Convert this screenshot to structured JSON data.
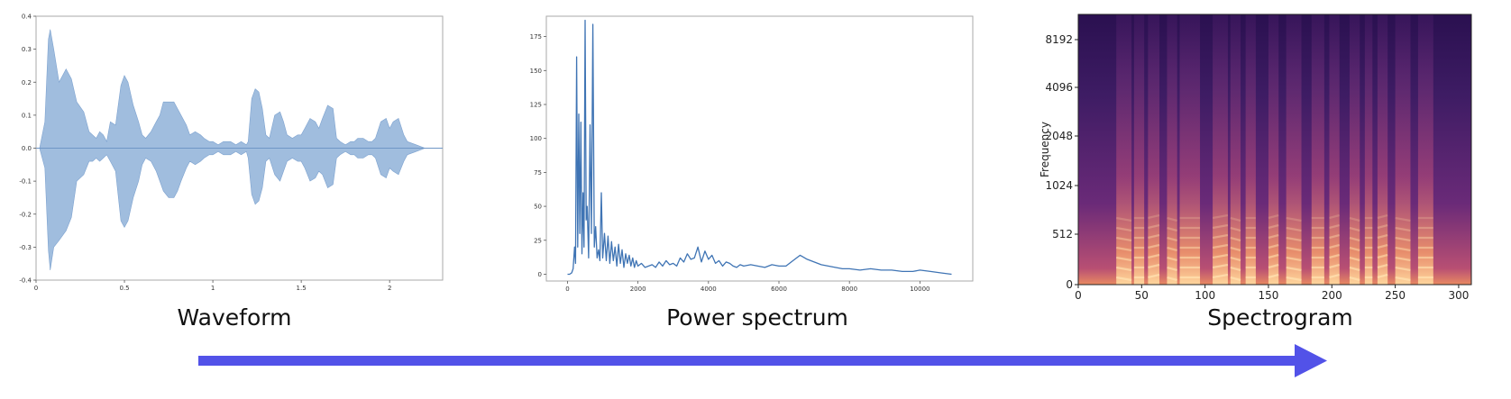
{
  "captions": {
    "waveform": "Waveform",
    "power": "Power spectrum",
    "spectrogram": "Spectrogram"
  },
  "colors": {
    "waveform": "#8fb1d8",
    "power": "#3f74b4",
    "arrow": "#5252e8"
  },
  "chart_data": [
    {
      "type": "area",
      "xlim": [
        0,
        2.3
      ],
      "ylim": [
        -0.4,
        0.4
      ],
      "x_ticks": [
        "0",
        "0.5",
        "1",
        "1.5",
        "2"
      ],
      "x_tick_values": [
        0,
        0.5,
        1,
        1.5,
        2
      ],
      "y_ticks": [
        "0.4",
        "0.3",
        "0.2",
        "0.1",
        "0.0",
        "-0.1",
        "-0.2",
        "-0.3",
        "-0.4"
      ],
      "y_tick_values": [
        0.4,
        0.3,
        0.2,
        0.1,
        0.0,
        -0.1,
        -0.2,
        -0.3,
        -0.4
      ],
      "envelope": {
        "x": [
          0,
          0.02,
          0.05,
          0.07,
          0.08,
          0.1,
          0.13,
          0.17,
          0.2,
          0.23,
          0.27,
          0.3,
          0.32,
          0.34,
          0.36,
          0.38,
          0.4,
          0.42,
          0.45,
          0.48,
          0.5,
          0.52,
          0.55,
          0.58,
          0.6,
          0.62,
          0.65,
          0.68,
          0.7,
          0.72,
          0.75,
          0.78,
          0.8,
          0.82,
          0.85,
          0.87,
          0.9,
          0.93,
          0.95,
          0.98,
          1.0,
          1.03,
          1.06,
          1.1,
          1.13,
          1.16,
          1.19,
          1.2,
          1.22,
          1.24,
          1.26,
          1.28,
          1.3,
          1.32,
          1.35,
          1.38,
          1.4,
          1.42,
          1.45,
          1.48,
          1.5,
          1.52,
          1.55,
          1.58,
          1.6,
          1.62,
          1.65,
          1.68,
          1.7,
          1.72,
          1.75,
          1.78,
          1.8,
          1.82,
          1.85,
          1.88,
          1.9,
          1.92,
          1.95,
          1.98,
          2.0,
          2.02,
          2.05,
          2.08,
          2.1,
          2.15,
          2.2,
          2.3
        ],
        "top": [
          0.0,
          0.0,
          0.08,
          0.33,
          0.36,
          0.3,
          0.2,
          0.24,
          0.21,
          0.14,
          0.11,
          0.05,
          0.04,
          0.03,
          0.05,
          0.04,
          0.02,
          0.08,
          0.07,
          0.19,
          0.22,
          0.2,
          0.13,
          0.08,
          0.04,
          0.03,
          0.05,
          0.08,
          0.1,
          0.14,
          0.14,
          0.14,
          0.12,
          0.1,
          0.07,
          0.04,
          0.05,
          0.04,
          0.03,
          0.02,
          0.02,
          0.01,
          0.02,
          0.02,
          0.01,
          0.02,
          0.01,
          0.02,
          0.15,
          0.18,
          0.17,
          0.12,
          0.04,
          0.03,
          0.1,
          0.11,
          0.08,
          0.04,
          0.03,
          0.04,
          0.04,
          0.06,
          0.09,
          0.08,
          0.06,
          0.09,
          0.13,
          0.12,
          0.03,
          0.02,
          0.01,
          0.02,
          0.02,
          0.03,
          0.03,
          0.02,
          0.02,
          0.03,
          0.08,
          0.09,
          0.06,
          0.08,
          0.09,
          0.04,
          0.02,
          0.01,
          0.0,
          0.0
        ],
        "bottom": [
          0.0,
          0.0,
          -0.06,
          -0.31,
          -0.37,
          -0.3,
          -0.28,
          -0.25,
          -0.21,
          -0.1,
          -0.08,
          -0.04,
          -0.04,
          -0.03,
          -0.04,
          -0.03,
          -0.02,
          -0.04,
          -0.07,
          -0.22,
          -0.24,
          -0.22,
          -0.15,
          -0.1,
          -0.05,
          -0.03,
          -0.04,
          -0.07,
          -0.1,
          -0.13,
          -0.15,
          -0.15,
          -0.13,
          -0.1,
          -0.06,
          -0.04,
          -0.05,
          -0.04,
          -0.03,
          -0.02,
          -0.02,
          -0.01,
          -0.02,
          -0.02,
          -0.01,
          -0.02,
          -0.01,
          -0.03,
          -0.14,
          -0.17,
          -0.16,
          -0.12,
          -0.04,
          -0.03,
          -0.08,
          -0.1,
          -0.07,
          -0.04,
          -0.03,
          -0.04,
          -0.04,
          -0.06,
          -0.1,
          -0.09,
          -0.07,
          -0.08,
          -0.12,
          -0.11,
          -0.03,
          -0.02,
          -0.01,
          -0.02,
          -0.02,
          -0.03,
          -0.03,
          -0.02,
          -0.02,
          -0.03,
          -0.08,
          -0.09,
          -0.06,
          -0.07,
          -0.08,
          -0.04,
          -0.02,
          -0.01,
          0.0,
          0.0
        ]
      }
    },
    {
      "type": "line",
      "xlim": [
        -600,
        11500
      ],
      "ylim": [
        -5,
        190
      ],
      "x_ticks": [
        "0",
        "2000",
        "4000",
        "6000",
        "8000",
        "10000"
      ],
      "x_tick_values": [
        0,
        2000,
        4000,
        6000,
        8000,
        10000
      ],
      "y_ticks": [
        "175",
        "150",
        "125",
        "100",
        "75",
        "50",
        "25",
        "0"
      ],
      "y_tick_values": [
        175,
        150,
        125,
        100,
        75,
        50,
        25,
        0
      ],
      "x": [
        0,
        60,
        120,
        160,
        200,
        230,
        260,
        290,
        320,
        350,
        380,
        410,
        440,
        470,
        500,
        530,
        560,
        600,
        640,
        680,
        720,
        760,
        800,
        840,
        880,
        920,
        960,
        1000,
        1050,
        1100,
        1150,
        1200,
        1250,
        1300,
        1350,
        1400,
        1450,
        1500,
        1550,
        1600,
        1650,
        1700,
        1750,
        1800,
        1850,
        1900,
        1950,
        2000,
        2100,
        2200,
        2300,
        2400,
        2500,
        2600,
        2700,
        2800,
        2900,
        3000,
        3100,
        3200,
        3300,
        3400,
        3500,
        3600,
        3700,
        3800,
        3900,
        4000,
        4100,
        4200,
        4300,
        4400,
        4500,
        4600,
        4700,
        4800,
        4900,
        5000,
        5200,
        5400,
        5600,
        5800,
        6000,
        6200,
        6400,
        6600,
        6800,
        7000,
        7200,
        7400,
        7600,
        7800,
        8000,
        8300,
        8600,
        8900,
        9200,
        9500,
        9800,
        10000,
        10300,
        10600,
        10900
      ],
      "y": [
        0,
        0,
        1,
        4,
        20,
        8,
        160,
        20,
        118,
        30,
        112,
        15,
        60,
        20,
        187,
        40,
        50,
        12,
        110,
        30,
        184,
        20,
        35,
        12,
        18,
        10,
        60,
        12,
        30,
        10,
        28,
        8,
        24,
        10,
        20,
        6,
        22,
        8,
        18,
        5,
        15,
        8,
        14,
        6,
        12,
        5,
        10,
        6,
        8,
        5,
        6,
        7,
        5,
        9,
        6,
        10,
        7,
        8,
        6,
        12,
        9,
        15,
        11,
        12,
        20,
        9,
        17,
        11,
        14,
        8,
        10,
        6,
        9,
        8,
        6,
        5,
        7,
        6,
        7,
        6,
        5,
        7,
        6,
        6,
        10,
        14,
        11,
        9,
        7,
        6,
        5,
        4,
        4,
        3,
        4,
        3,
        3,
        2,
        2,
        3,
        2,
        1,
        0
      ]
    },
    {
      "type": "heatmap",
      "xlim": [
        0,
        310
      ],
      "ylim": [
        0,
        11000
      ],
      "ylabel": "Frequency",
      "x_ticks": [
        "0",
        "50",
        "100",
        "150",
        "200",
        "250",
        "300"
      ],
      "x_tick_values": [
        0,
        50,
        100,
        150,
        200,
        250,
        300
      ],
      "y_ticks": [
        "0",
        "512",
        "1024",
        "2048",
        "4096",
        "8192"
      ],
      "y_tick_values": [
        0,
        512,
        1024,
        2048,
        4096,
        8192
      ],
      "voiced_frames": [
        [
          30,
          42
        ],
        [
          44,
          52
        ],
        [
          55,
          64
        ],
        [
          70,
          78
        ],
        [
          80,
          96
        ],
        [
          106,
          118
        ],
        [
          120,
          128
        ],
        [
          132,
          140
        ],
        [
          150,
          158
        ],
        [
          164,
          176
        ],
        [
          184,
          194
        ],
        [
          198,
          206
        ],
        [
          214,
          222
        ],
        [
          226,
          232
        ],
        [
          236,
          244
        ],
        [
          250,
          262
        ],
        [
          268,
          280
        ]
      ]
    }
  ]
}
